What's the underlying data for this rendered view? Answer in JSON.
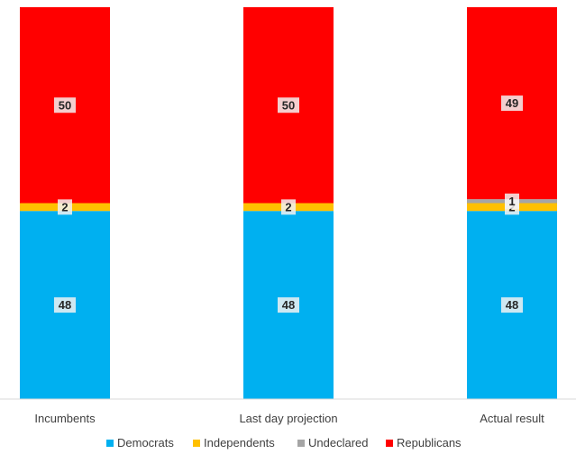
{
  "chart_data": {
    "type": "bar",
    "stacked": true,
    "categories": [
      "Incumbents",
      "Last day projection",
      "Actual result"
    ],
    "series": [
      {
        "name": "Democrats",
        "color": "#00b0f0",
        "values": [
          48,
          48,
          48
        ]
      },
      {
        "name": "Independents",
        "color": "#ffc000",
        "values": [
          2,
          2,
          2
        ]
      },
      {
        "name": "Undeclared",
        "color": "#a5a5a5",
        "values": [
          0,
          0,
          1
        ]
      },
      {
        "name": "Republicans",
        "color": "#ff0000",
        "values": [
          50,
          50,
          49
        ]
      }
    ],
    "title": "",
    "xlabel": "",
    "ylabel": "",
    "ylim": [
      0,
      100
    ],
    "grid": false,
    "legend_position": "bottom",
    "data_labels": true
  }
}
